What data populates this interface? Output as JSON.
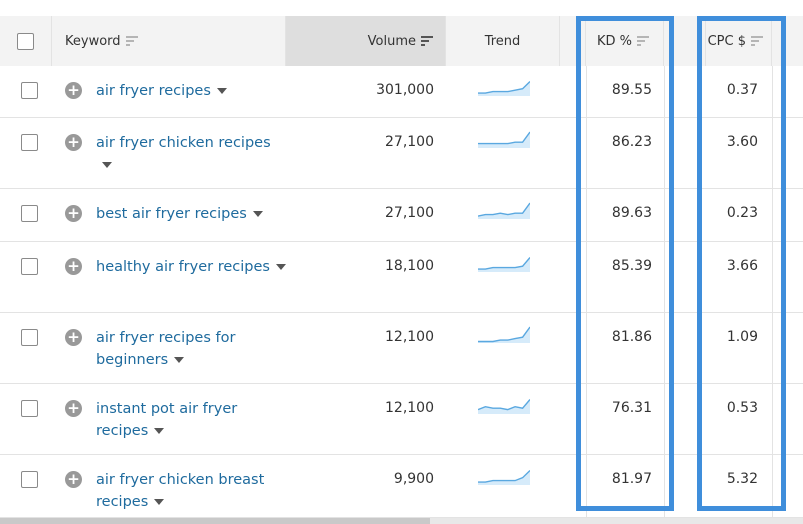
{
  "header": {
    "keyword": "Keyword",
    "volume": "Volume",
    "trend": "Trend",
    "kd": "KD %",
    "cpc": "CPC $"
  },
  "rows": [
    {
      "keyword": "air fryer recipes",
      "volume": "301,000",
      "kd": "89.55",
      "cpc": "0.37",
      "trend": [
        2,
        2,
        3,
        3,
        3,
        4,
        5,
        10
      ]
    },
    {
      "keyword": "air fryer chicken recipes",
      "volume": "27,100",
      "kd": "86.23",
      "cpc": "3.60",
      "trend": [
        3,
        3,
        3,
        3,
        3,
        4,
        4,
        11
      ]
    },
    {
      "keyword": "best air fryer recipes",
      "volume": "27,100",
      "kd": "89.63",
      "cpc": "0.23",
      "trend": [
        2,
        3,
        3,
        4,
        3,
        4,
        4,
        11
      ]
    },
    {
      "keyword": "healthy air fryer recipes",
      "volume": "18,100",
      "kd": "85.39",
      "cpc": "3.66",
      "trend": [
        2,
        2,
        3,
        3,
        3,
        3,
        4,
        10
      ]
    },
    {
      "keyword": "air fryer recipes for beginners",
      "volume": "12,100",
      "kd": "81.86",
      "cpc": "1.09",
      "trend": [
        1,
        1,
        1,
        2,
        2,
        3,
        4,
        11
      ]
    },
    {
      "keyword": "instant pot air fryer recipes",
      "volume": "12,100",
      "kd": "76.31",
      "cpc": "0.53",
      "trend": [
        3,
        5,
        4,
        4,
        3,
        5,
        4,
        10
      ]
    },
    {
      "keyword": "air fryer chicken breast recipes",
      "volume": "9,900",
      "kd": "81.97",
      "cpc": "5.32",
      "trend": [
        2,
        2,
        3,
        3,
        3,
        3,
        5,
        10
      ]
    }
  ],
  "colors": {
    "link": "#1f6b9e",
    "highlight": "#3f8edb",
    "sparkline": "#5aa8e0",
    "sparkline_fill": "#d6ebfa"
  }
}
